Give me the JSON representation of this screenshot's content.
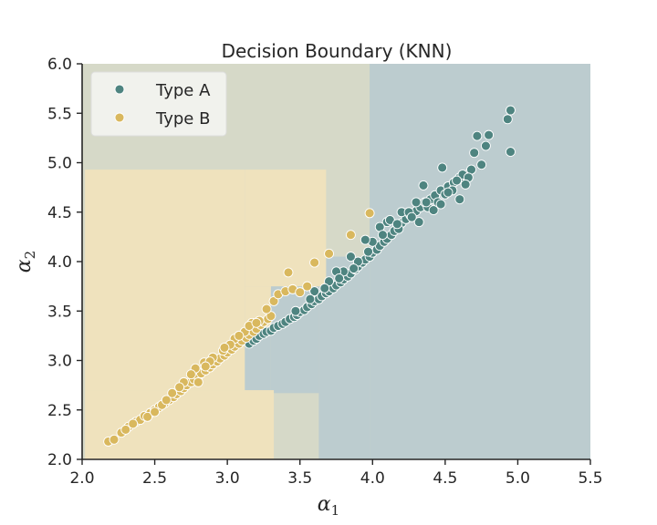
{
  "chart_data": {
    "type": "scatter",
    "title": "Decision Boundary (KNN)",
    "xlabel": "α",
    "xlabel_sub": "1",
    "ylabel": "α",
    "ylabel_sub": "2",
    "xlim": [
      2.0,
      5.5
    ],
    "ylim": [
      2.0,
      6.0
    ],
    "xticks": [
      "2.0",
      "2.5",
      "3.0",
      "3.5",
      "4.0",
      "4.5",
      "5.0",
      "5.5"
    ],
    "yticks": [
      "2.0",
      "2.5",
      "3.0",
      "3.5",
      "4.0",
      "4.5",
      "5.0",
      "5.5",
      "6.0"
    ],
    "legend_position": "top-left",
    "grid": false,
    "region_colors": {
      "Type A": "#bccccf",
      "Type B": "#efe2bd",
      "mixed": "#d6d9c8"
    },
    "decision_regions": [
      {
        "class": "mixed",
        "x": [
          2.0,
          5.5
        ],
        "y": [
          2.0,
          6.0
        ]
      },
      {
        "class": "Type A",
        "x": [
          3.98,
          5.5
        ],
        "y": [
          2.0,
          6.0
        ]
      },
      {
        "class": "Type A",
        "x": [
          3.63,
          3.98
        ],
        "y": [
          2.0,
          4.05
        ]
      },
      {
        "class": "Type A",
        "x": [
          3.3,
          3.63
        ],
        "y": [
          2.67,
          3.75
        ]
      },
      {
        "class": "Type A",
        "x": [
          3.12,
          3.3
        ],
        "y": [
          2.67,
          3.25
        ]
      },
      {
        "class": "Type B",
        "x": [
          2.02,
          3.32
        ],
        "y": [
          2.0,
          2.7
        ]
      },
      {
        "class": "Type B",
        "x": [
          2.02,
          3.12
        ],
        "y": [
          2.7,
          4.93
        ]
      },
      {
        "class": "Type B",
        "x": [
          3.12,
          3.68
        ],
        "y": [
          3.75,
          4.93
        ]
      },
      {
        "class": "Type B",
        "x": [
          3.12,
          3.3
        ],
        "y": [
          3.25,
          3.75
        ]
      }
    ],
    "series": [
      {
        "name": "Type A",
        "color": "#4e8480",
        "points": [
          [
            3.15,
            3.17
          ],
          [
            3.18,
            3.2
          ],
          [
            3.2,
            3.22
          ],
          [
            3.22,
            3.25
          ],
          [
            3.25,
            3.27
          ],
          [
            3.27,
            3.29
          ],
          [
            3.3,
            3.3
          ],
          [
            3.32,
            3.33
          ],
          [
            3.35,
            3.35
          ],
          [
            3.38,
            3.37
          ],
          [
            3.4,
            3.39
          ],
          [
            3.43,
            3.42
          ],
          [
            3.46,
            3.44
          ],
          [
            3.48,
            3.46
          ],
          [
            3.5,
            3.49
          ],
          [
            3.53,
            3.51
          ],
          [
            3.55,
            3.54
          ],
          [
            3.58,
            3.57
          ],
          [
            3.6,
            3.6
          ],
          [
            3.63,
            3.62
          ],
          [
            3.65,
            3.65
          ],
          [
            3.68,
            3.68
          ],
          [
            3.7,
            3.7
          ],
          [
            3.73,
            3.73
          ],
          [
            3.75,
            3.76
          ],
          [
            3.78,
            3.79
          ],
          [
            3.8,
            3.82
          ],
          [
            3.83,
            3.85
          ],
          [
            3.85,
            3.88
          ],
          [
            3.88,
            3.92
          ],
          [
            3.9,
            3.95
          ],
          [
            3.93,
            3.99
          ],
          [
            3.95,
            4.02
          ],
          [
            3.98,
            4.05
          ],
          [
            4.0,
            4.09
          ],
          [
            4.03,
            4.12
          ],
          [
            4.05,
            4.16
          ],
          [
            4.08,
            4.2
          ],
          [
            4.1,
            4.23
          ],
          [
            4.13,
            4.27
          ],
          [
            4.15,
            4.31
          ],
          [
            4.18,
            4.35
          ],
          [
            4.2,
            4.39
          ],
          [
            4.23,
            4.43
          ],
          [
            4.26,
            4.47
          ],
          [
            4.3,
            4.51
          ],
          [
            4.33,
            4.55
          ],
          [
            4.36,
            4.6
          ],
          [
            4.4,
            4.63
          ],
          [
            4.43,
            4.67
          ],
          [
            4.47,
            4.72
          ],
          [
            4.52,
            4.76
          ],
          [
            4.56,
            4.8
          ],
          [
            4.6,
            4.85
          ],
          [
            4.65,
            4.88
          ],
          [
            4.68,
            4.93
          ],
          [
            3.6,
            3.7
          ],
          [
            3.7,
            3.8
          ],
          [
            3.8,
            3.9
          ],
          [
            3.9,
            4.0
          ],
          [
            4.0,
            4.2
          ],
          [
            4.1,
            4.4
          ],
          [
            4.2,
            4.5
          ],
          [
            4.3,
            4.6
          ],
          [
            4.35,
            4.77
          ],
          [
            4.48,
            4.95
          ],
          [
            4.6,
            4.63
          ],
          [
            4.62,
            4.88
          ],
          [
            4.66,
            4.85
          ],
          [
            4.7,
            5.1
          ],
          [
            4.72,
            5.27
          ],
          [
            4.75,
            4.98
          ],
          [
            4.78,
            5.17
          ],
          [
            4.8,
            5.28
          ],
          [
            4.93,
            5.44
          ],
          [
            4.95,
            5.53
          ],
          [
            4.95,
            5.11
          ],
          [
            3.75,
            3.9
          ],
          [
            3.85,
            4.05
          ],
          [
            3.95,
            4.22
          ],
          [
            4.05,
            4.35
          ],
          [
            4.12,
            4.42
          ],
          [
            4.18,
            4.33
          ],
          [
            4.25,
            4.5
          ],
          [
            4.32,
            4.4
          ],
          [
            4.38,
            4.55
          ],
          [
            4.45,
            4.6
          ],
          [
            4.5,
            4.68
          ],
          [
            4.55,
            4.72
          ],
          [
            4.58,
            4.82
          ],
          [
            3.47,
            3.5
          ],
          [
            3.57,
            3.62
          ],
          [
            3.67,
            3.73
          ],
          [
            3.77,
            3.83
          ],
          [
            3.87,
            3.93
          ],
          [
            3.97,
            4.1
          ],
          [
            4.07,
            4.27
          ],
          [
            4.17,
            4.38
          ],
          [
            4.27,
            4.45
          ],
          [
            4.37,
            4.6
          ],
          [
            4.42,
            4.52
          ],
          [
            4.47,
            4.58
          ],
          [
            4.52,
            4.7
          ],
          [
            4.64,
            4.78
          ]
        ]
      },
      {
        "name": "Type B",
        "color": "#d9b85e",
        "points": [
          [
            2.18,
            2.18
          ],
          [
            2.22,
            2.2
          ],
          [
            2.27,
            2.27
          ],
          [
            2.32,
            2.33
          ],
          [
            2.37,
            2.38
          ],
          [
            2.4,
            2.4
          ],
          [
            2.43,
            2.44
          ],
          [
            2.47,
            2.47
          ],
          [
            2.5,
            2.5
          ],
          [
            2.53,
            2.53
          ],
          [
            2.57,
            2.57
          ],
          [
            2.6,
            2.6
          ],
          [
            2.63,
            2.63
          ],
          [
            2.65,
            2.66
          ],
          [
            2.68,
            2.69
          ],
          [
            2.7,
            2.72
          ],
          [
            2.72,
            2.75
          ],
          [
            2.75,
            2.78
          ],
          [
            2.77,
            2.81
          ],
          [
            2.8,
            2.84
          ],
          [
            2.82,
            2.87
          ],
          [
            2.85,
            2.9
          ],
          [
            2.88,
            2.93
          ],
          [
            2.9,
            2.96
          ],
          [
            2.93,
            2.99
          ],
          [
            2.95,
            3.02
          ],
          [
            2.98,
            3.05
          ],
          [
            3.0,
            3.08
          ],
          [
            3.03,
            3.11
          ],
          [
            3.05,
            3.14
          ],
          [
            3.08,
            3.17
          ],
          [
            3.1,
            3.2
          ],
          [
            3.13,
            3.23
          ],
          [
            3.15,
            3.26
          ],
          [
            3.18,
            3.29
          ],
          [
            3.2,
            3.32
          ],
          [
            3.23,
            3.36
          ],
          [
            3.25,
            3.39
          ],
          [
            3.28,
            3.42
          ],
          [
            3.3,
            3.45
          ],
          [
            2.45,
            2.43
          ],
          [
            2.55,
            2.55
          ],
          [
            2.62,
            2.67
          ],
          [
            2.7,
            2.78
          ],
          [
            2.78,
            2.92
          ],
          [
            2.84,
            2.98
          ],
          [
            2.9,
            3.03
          ],
          [
            2.97,
            3.1
          ],
          [
            3.05,
            3.22
          ],
          [
            3.12,
            3.29
          ],
          [
            3.17,
            3.38
          ],
          [
            3.22,
            3.4
          ],
          [
            3.27,
            3.52
          ],
          [
            3.32,
            3.6
          ],
          [
            3.35,
            3.67
          ],
          [
            3.4,
            3.7
          ],
          [
            3.42,
            3.89
          ],
          [
            3.45,
            3.72
          ],
          [
            3.5,
            3.69
          ],
          [
            3.55,
            3.75
          ],
          [
            3.6,
            3.99
          ],
          [
            3.7,
            4.08
          ],
          [
            3.85,
            4.27
          ],
          [
            3.98,
            4.49
          ],
          [
            2.75,
            2.86
          ],
          [
            2.88,
            2.99
          ],
          [
            3.02,
            3.16
          ],
          [
            3.15,
            3.35
          ],
          [
            3.2,
            3.38
          ],
          [
            3.08,
            3.25
          ],
          [
            2.98,
            3.13
          ],
          [
            2.85,
            2.94
          ],
          [
            2.8,
            2.78
          ],
          [
            2.67,
            2.73
          ],
          [
            2.58,
            2.6
          ],
          [
            2.5,
            2.48
          ],
          [
            2.35,
            2.36
          ],
          [
            2.3,
            2.3
          ]
        ]
      }
    ]
  }
}
